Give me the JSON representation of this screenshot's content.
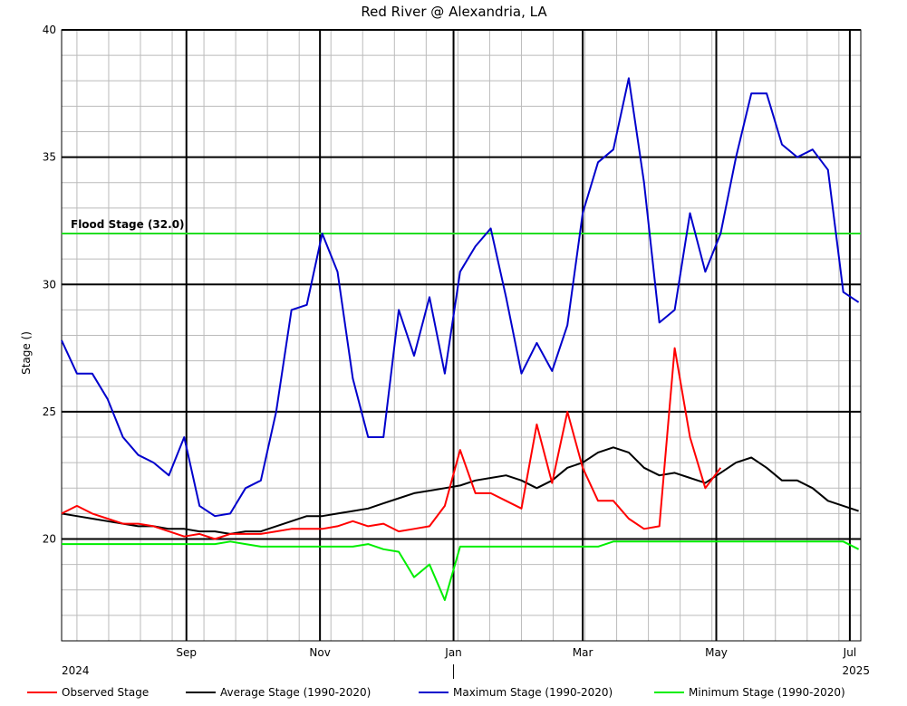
{
  "chart_data": {
    "type": "line",
    "title": "Red River @ Alexandria, LA",
    "y_label": "Stage ()",
    "xlim": [
      "2024-07-06",
      "2025-07-06"
    ],
    "xticks": [
      {
        "value": "2024-09-01",
        "label": "Sep"
      },
      {
        "value": "2024-11-01",
        "label": "Nov"
      },
      {
        "value": "2025-01-01",
        "label": "Jan"
      },
      {
        "value": "2025-03-01",
        "label": "Mar"
      },
      {
        "value": "2025-05-01",
        "label": "May"
      },
      {
        "value": "2025-07-01",
        "label": "Jul"
      }
    ],
    "year_labels": [
      "2024",
      "2025"
    ],
    "ylim": [
      16,
      40
    ],
    "yticks": [
      20,
      25,
      30,
      35,
      40
    ],
    "grid": true,
    "flood_stage": {
      "value": 32,
      "label": "Flood Stage (32.0)",
      "color": "#22dd22"
    },
    "x": [
      "2024-07-06",
      "2024-07-13",
      "2024-07-20",
      "2024-07-27",
      "2024-08-03",
      "2024-08-10",
      "2024-08-17",
      "2024-08-24",
      "2024-08-31",
      "2024-09-07",
      "2024-09-14",
      "2024-09-21",
      "2024-09-28",
      "2024-10-05",
      "2024-10-12",
      "2024-10-19",
      "2024-10-26",
      "2024-11-02",
      "2024-11-09",
      "2024-11-16",
      "2024-11-23",
      "2024-11-30",
      "2024-12-07",
      "2024-12-14",
      "2024-12-21",
      "2024-12-28",
      "2025-01-04",
      "2025-01-11",
      "2025-01-18",
      "2025-01-25",
      "2025-02-01",
      "2025-02-08",
      "2025-02-15",
      "2025-02-22",
      "2025-03-01",
      "2025-03-08",
      "2025-03-15",
      "2025-03-22",
      "2025-03-29",
      "2025-04-05",
      "2025-04-12",
      "2025-04-19",
      "2025-04-26",
      "2025-05-03",
      "2025-05-10",
      "2025-05-17",
      "2025-05-24",
      "2025-05-31",
      "2025-06-07",
      "2025-06-14",
      "2025-06-21",
      "2025-06-28",
      "2025-07-05"
    ],
    "series": [
      {
        "name": "Observed Stage",
        "color": "#ff0000",
        "values": [
          21.0,
          21.3,
          21.0,
          20.8,
          20.6,
          20.6,
          20.5,
          20.3,
          20.1,
          20.2,
          20.0,
          20.2,
          20.2,
          20.2,
          20.3,
          20.4,
          20.4,
          20.4,
          20.5,
          20.7,
          20.5,
          20.6,
          20.3,
          20.4,
          20.5,
          21.3,
          23.5,
          21.8,
          21.8,
          21.5,
          21.2,
          24.5,
          22.2,
          25.0,
          22.8,
          21.5,
          21.5,
          20.8,
          20.4,
          20.5,
          27.5,
          24.0,
          22.0,
          22.8,
          null,
          null,
          null,
          null,
          null,
          null,
          null,
          null,
          null
        ]
      },
      {
        "name": "Average Stage (1990-2020)",
        "color": "#000000",
        "values": [
          21.0,
          20.9,
          20.8,
          20.7,
          20.6,
          20.5,
          20.5,
          20.4,
          20.4,
          20.3,
          20.3,
          20.2,
          20.3,
          20.3,
          20.5,
          20.7,
          20.9,
          20.9,
          21.0,
          21.1,
          21.2,
          21.4,
          21.6,
          21.8,
          21.9,
          22.0,
          22.1,
          22.3,
          22.4,
          22.5,
          22.3,
          22.0,
          22.3,
          22.8,
          23.0,
          23.4,
          23.6,
          23.4,
          22.8,
          22.5,
          22.6,
          22.4,
          22.2,
          22.6,
          23.0,
          23.2,
          22.8,
          22.3,
          22.3,
          22.0,
          21.5,
          21.3,
          21.1
        ]
      },
      {
        "name": "Maximum Stage (1990-2020)",
        "color": "#0000cc",
        "values": [
          27.8,
          26.5,
          26.5,
          25.5,
          24.0,
          23.3,
          23.0,
          22.5,
          24.0,
          21.3,
          20.9,
          21.0,
          22.0,
          22.3,
          25.0,
          29.0,
          29.2,
          32.0,
          30.5,
          26.3,
          24.0,
          24.0,
          29.0,
          27.2,
          29.5,
          26.5,
          30.5,
          31.5,
          32.2,
          29.5,
          26.5,
          27.7,
          26.6,
          28.4,
          32.8,
          34.8,
          35.3,
          38.1,
          34.0,
          28.5,
          29.0,
          32.8,
          30.5,
          32.0,
          35.0,
          37.5,
          37.5,
          35.5,
          35.0,
          35.3,
          34.5,
          29.7,
          29.3
        ]
      },
      {
        "name": "Minimum Stage (1990-2020)",
        "color": "#00ee00",
        "values": [
          19.8,
          19.8,
          19.8,
          19.8,
          19.8,
          19.8,
          19.8,
          19.8,
          19.8,
          19.8,
          19.8,
          19.9,
          19.8,
          19.7,
          19.7,
          19.7,
          19.7,
          19.7,
          19.7,
          19.7,
          19.8,
          19.6,
          19.5,
          18.5,
          19.0,
          17.6,
          19.7,
          19.7,
          19.7,
          19.7,
          19.7,
          19.7,
          19.7,
          19.7,
          19.7,
          19.7,
          19.9,
          19.9,
          19.9,
          19.9,
          19.9,
          19.9,
          19.9,
          19.9,
          19.9,
          19.9,
          19.9,
          19.9,
          19.9,
          19.9,
          19.9,
          19.9,
          19.6
        ]
      }
    ]
  }
}
